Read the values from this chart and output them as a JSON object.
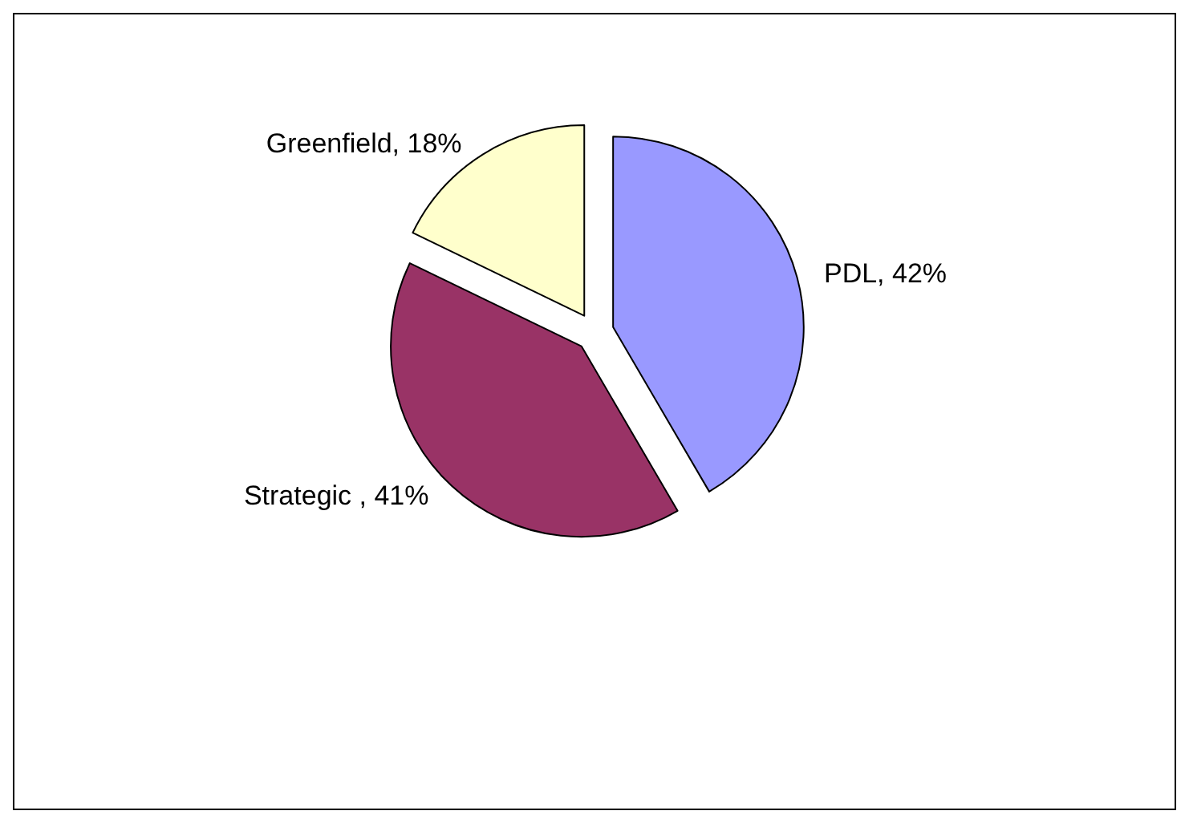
{
  "chart_data": {
    "type": "pie",
    "categories": [
      "PDL",
      "Strategic ",
      "Greenfield"
    ],
    "values": [
      42,
      41,
      18
    ],
    "value_labels": [
      "42%",
      "41%",
      "18%"
    ],
    "colors": [
      "#9999ff",
      "#993366",
      "#ffffcc"
    ],
    "legend": false
  }
}
